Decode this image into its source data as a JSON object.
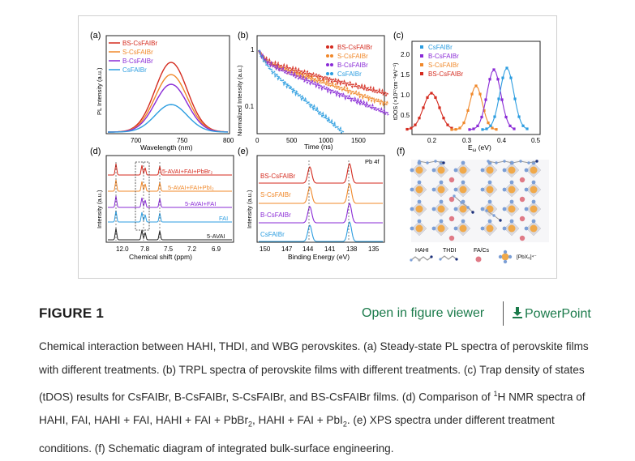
{
  "figure": {
    "panels": {
      "a": {
        "label": "(a)",
        "legend": [
          "BS-CsFAIBr",
          "S-CsFAIBr",
          "B-CsFAIBr",
          "CsFAIBr"
        ],
        "xlabel": "Wavelength (nm)",
        "ylabel": "PL Intensity (a.u.)",
        "xticks": [
          "700",
          "750",
          "800"
        ]
      },
      "b": {
        "label": "(b)",
        "legend": [
          "BS-CsFAIBr",
          "S-CsFAIBr",
          "B-CsFAIBr",
          "CsFAIBr"
        ],
        "xlabel": "Time (ns)",
        "ylabel": "Normalized Intensity (a.u.)",
        "xticks": [
          "0",
          "500",
          "1000",
          "1500"
        ],
        "yticks": [
          "1",
          "0.1"
        ]
      },
      "c": {
        "label": "(c)",
        "legend": [
          "CsFAIBr",
          "B-CsFAIBr",
          "S-CsFAIBr",
          "BS-CsFAIBr"
        ],
        "xlabel_main": "E",
        "xlabel_sub": "ω",
        "xlabel_unit": " (eV)",
        "ylabel": "tDOS (×10¹⁷cm⁻³eV⁻¹)",
        "xticks": [
          "0.2",
          "0.3",
          "0.4",
          "0.5"
        ],
        "yticks": [
          "0.5",
          "1.0",
          "1.5",
          "2.0"
        ]
      },
      "d": {
        "label": "(d)",
        "traces": [
          "5-AVAI+FAI+PbBr₂",
          "5-AVAI+FAI+PbI₂",
          "5-AVAI+FAI",
          "FAI",
          "5-AVAI"
        ],
        "xlabel": "Chemical shift (ppm)",
        "ylabel": "Intensity (a.u.)",
        "xticks": [
          "12.0",
          "7.8",
          "7.5",
          "7.2",
          "6.9"
        ]
      },
      "e": {
        "label": "(e)",
        "traces": [
          "BS-CsFAIBr",
          "S-CsFAIBr",
          "B-CsFAIBr",
          "CsFAIBr"
        ],
        "annotation": "Pb 4f",
        "xlabel": "Binding Energy (eV)",
        "ylabel": "Intensity (a.u.)",
        "xticks": [
          "150",
          "147",
          "144",
          "141",
          "138",
          "135"
        ]
      },
      "f": {
        "label": "(f)",
        "legend": [
          "HAHI",
          "THDI",
          "FA/Cs",
          "[PbX₆]⁴⁻"
        ]
      }
    },
    "colors": {
      "red": "#d42a1e",
      "orange": "#f0882a",
      "purple": "#8a2bd6",
      "blue": "#2c9de0",
      "black": "#222222",
      "link": "#1a7a4a"
    }
  },
  "header": {
    "title": "FIGURE 1",
    "viewer_link": "Open in figure viewer",
    "powerpoint_link": "PowerPoint"
  },
  "caption": {
    "p1": "Chemical interaction between HAHI, THDI, and WBG perovskites. (a) Steady-state PL spectra of perovskite films with different treatments. (b) TRPL spectra of perovskite films with different treatments. (c) Trap density of states (tDOS) results for CsFAIBr, B-CsFAIBr, S-CsFAIBr, and BS-CsFAIBr films. (d) Comparison of ",
    "sup1": "1",
    "p2": "H NMR spectra of HAHI, FAI, HAHI + FAI, HAHI + FAI + PbBr",
    "sub1": "2",
    "p3": ", HAHI + FAI + PbI",
    "sub2": "2",
    "p4": ". (e) XPS spectra under different treatment conditions. (f) Schematic diagram of integrated bulk-surface engineering."
  }
}
